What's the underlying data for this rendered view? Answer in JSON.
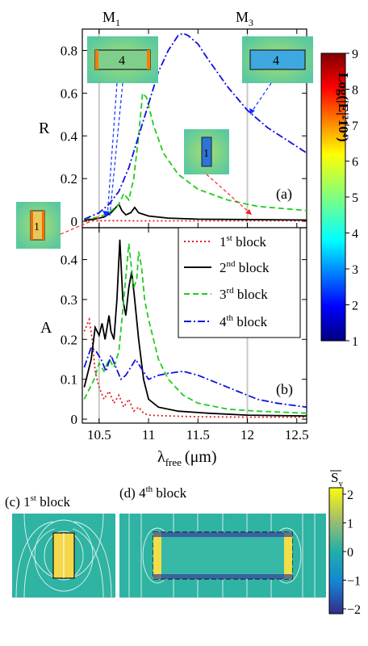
{
  "markers": [
    {
      "main": "M",
      "sub": "1",
      "x": 10.5
    },
    {
      "main": "M",
      "sub": "3",
      "x": 12.0
    }
  ],
  "colors": {
    "block1": "#e02020",
    "block2": "#000000",
    "block3": "#22cc22",
    "block4": "#1010dd",
    "marker_text": "#e02020",
    "marker_line": "#c8c8c8"
  },
  "chart_data": [
    {
      "type": "line",
      "panel_label": "(a)",
      "ylabel": "R",
      "xlim": [
        10.33,
        12.6
      ],
      "ylim": [
        -0.03,
        0.9
      ],
      "yticks": [
        0,
        0.2,
        0.4,
        0.6,
        0.8
      ],
      "ytick_labels": [
        "0",
        "0.2",
        "0.4",
        "0.6",
        "0.8"
      ],
      "series": [
        {
          "key": "b1",
          "style": "dotted",
          "color": "#e02020",
          "x": [
            10.35,
            10.5,
            10.7,
            10.9,
            11.2,
            11.6,
            12.0,
            12.6
          ],
          "y": [
            0.003,
            0.003,
            0.003,
            0.002,
            0.002,
            0.002,
            0.002,
            0.002
          ]
        },
        {
          "key": "b2",
          "style": "solid",
          "color": "#000000",
          "x": [
            10.35,
            10.45,
            10.55,
            10.62,
            10.66,
            10.7,
            10.73,
            10.77,
            10.82,
            10.86,
            10.9,
            11.0,
            11.2,
            11.5,
            12.0,
            12.6
          ],
          "y": [
            0.005,
            0.01,
            0.02,
            0.04,
            0.06,
            0.08,
            0.05,
            0.03,
            0.04,
            0.065,
            0.04,
            0.025,
            0.015,
            0.01,
            0.008,
            0.006
          ]
        },
        {
          "key": "b3",
          "style": "dashed",
          "color": "#22cc22",
          "x": [
            10.35,
            10.5,
            10.6,
            10.7,
            10.75,
            10.8,
            10.85,
            10.9,
            10.94,
            10.98,
            11.05,
            11.15,
            11.3,
            11.5,
            11.8,
            12.1,
            12.6
          ],
          "y": [
            0.01,
            0.02,
            0.04,
            0.08,
            0.13,
            0.1,
            0.2,
            0.4,
            0.6,
            0.58,
            0.45,
            0.32,
            0.22,
            0.15,
            0.1,
            0.07,
            0.05
          ]
        },
        {
          "key": "b4",
          "style": "dashdot",
          "color": "#1010dd",
          "x": [
            10.35,
            10.5,
            10.6,
            10.7,
            10.8,
            10.9,
            11.0,
            11.1,
            11.2,
            11.3,
            11.35,
            11.4,
            11.5,
            11.6,
            11.8,
            12.0,
            12.2,
            12.4,
            12.6
          ],
          "y": [
            0.01,
            0.04,
            0.08,
            0.14,
            0.25,
            0.4,
            0.55,
            0.7,
            0.8,
            0.87,
            0.88,
            0.87,
            0.83,
            0.76,
            0.63,
            0.52,
            0.44,
            0.38,
            0.32
          ]
        }
      ]
    },
    {
      "type": "line",
      "panel_label": "(b)",
      "ylabel": "A",
      "xlabel_main": "λ",
      "xlabel_sub": "free",
      "xlabel_unit": "(μm)",
      "xlim": [
        10.33,
        12.6
      ],
      "ylim": [
        -0.01,
        0.48
      ],
      "xticks": [
        10.5,
        11,
        11.5,
        12,
        12.5
      ],
      "xtick_labels": [
        "10.5",
        "11",
        "11.5",
        "12",
        "12.5"
      ],
      "yticks": [
        0,
        0.1,
        0.2,
        0.3,
        0.4
      ],
      "ytick_labels": [
        "0",
        "0.1",
        "0.2",
        "0.3",
        "0.4"
      ],
      "legend_position": "top-right",
      "series": [
        {
          "key": "b1",
          "name_num": "1",
          "name_sup": "st",
          "name_tail": " block",
          "style": "dotted",
          "color": "#e02020",
          "x": [
            10.35,
            10.4,
            10.43,
            10.46,
            10.5,
            10.55,
            10.6,
            10.65,
            10.7,
            10.75,
            10.8,
            10.85,
            10.9,
            10.95,
            11.0,
            11.2,
            11.5,
            12.0,
            12.6
          ],
          "y": [
            0.22,
            0.25,
            0.2,
            0.12,
            0.08,
            0.05,
            0.07,
            0.04,
            0.06,
            0.03,
            0.05,
            0.02,
            0.03,
            0.015,
            0.01,
            0.008,
            0.006,
            0.005,
            0.005
          ]
        },
        {
          "key": "b2",
          "name_num": "2",
          "name_sup": "nd",
          "name_tail": " block",
          "style": "solid",
          "color": "#000000",
          "x": [
            10.35,
            10.42,
            10.46,
            10.5,
            10.53,
            10.56,
            10.6,
            10.62,
            10.65,
            10.68,
            10.71,
            10.74,
            10.77,
            10.8,
            10.83,
            10.86,
            10.9,
            10.95,
            11.0,
            11.1,
            11.3,
            11.6,
            12.0,
            12.6
          ],
          "y": [
            0.08,
            0.15,
            0.23,
            0.21,
            0.24,
            0.2,
            0.26,
            0.22,
            0.2,
            0.3,
            0.45,
            0.3,
            0.26,
            0.33,
            0.37,
            0.3,
            0.2,
            0.1,
            0.05,
            0.03,
            0.02,
            0.015,
            0.01,
            0.008
          ]
        },
        {
          "key": "b3",
          "name_num": "3",
          "name_sup": "rd",
          "name_tail": " block",
          "style": "dashed",
          "color": "#22cc22",
          "x": [
            10.35,
            10.45,
            10.5,
            10.55,
            10.6,
            10.65,
            10.7,
            10.75,
            10.8,
            10.85,
            10.88,
            10.9,
            10.93,
            10.96,
            11.0,
            11.05,
            11.1,
            11.2,
            11.35,
            11.5,
            11.8,
            12.1,
            12.6
          ],
          "y": [
            0.05,
            0.1,
            0.14,
            0.12,
            0.15,
            0.13,
            0.17,
            0.3,
            0.44,
            0.33,
            0.35,
            0.42,
            0.38,
            0.3,
            0.25,
            0.2,
            0.15,
            0.1,
            0.06,
            0.04,
            0.025,
            0.02,
            0.015
          ]
        },
        {
          "key": "b4",
          "name_num": "4",
          "name_sup": "th",
          "name_tail": " block",
          "style": "dashdot",
          "color": "#1010dd",
          "x": [
            10.35,
            10.42,
            10.47,
            10.52,
            10.57,
            10.62,
            10.67,
            10.72,
            10.77,
            10.82,
            10.87,
            10.92,
            11.0,
            11.1,
            11.2,
            11.35,
            11.5,
            11.7,
            11.9,
            12.1,
            12.3,
            12.6
          ],
          "y": [
            0.13,
            0.18,
            0.17,
            0.15,
            0.12,
            0.16,
            0.13,
            0.1,
            0.11,
            0.13,
            0.15,
            0.13,
            0.1,
            0.11,
            0.115,
            0.12,
            0.11,
            0.09,
            0.07,
            0.05,
            0.04,
            0.03
          ]
        }
      ]
    }
  ],
  "colorbar_top": {
    "label": "Log(|E|²10⁴)",
    "ticks": [
      "1",
      "2",
      "3",
      "4",
      "5",
      "6",
      "7",
      "8",
      "9"
    ]
  },
  "insets": {
    "top_left": {
      "label": "4"
    },
    "top_right": {
      "label": "4"
    },
    "middle": {
      "label": "1"
    },
    "left": {
      "label": "1"
    }
  },
  "bottom": {
    "panel_c": {
      "prefix": "(c) 1",
      "sup": "st",
      "suffix": " block"
    },
    "panel_d": {
      "prefix": "(d) 4",
      "sup": "th",
      "suffix": "  block"
    },
    "colorbar": {
      "label": "S",
      "label_sub": "y",
      "ticks": [
        "2",
        "1",
        "0",
        "−1",
        "−2"
      ]
    }
  }
}
